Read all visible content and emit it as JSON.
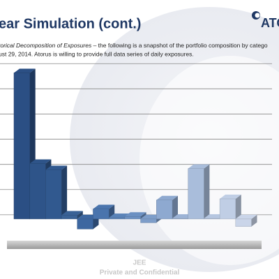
{
  "chart_data": {
    "type": "bar3d",
    "title": "ear Simulation (cont.)",
    "subtitle_italic": "torical Decomposition of Exposures",
    "subtitle_line1": " – the following is a snapshot of the portfolio composition by catego",
    "subtitle_line2": "ust 29, 2014.  Atorus is willing to provide full data series of daily exposures.",
    "categories": [
      null,
      null,
      null,
      null,
      null,
      null,
      null,
      null,
      null,
      null,
      null,
      null,
      null,
      null,
      null
    ],
    "values": [
      5.8,
      2.2,
      1.95,
      0.15,
      -0.4,
      0.4,
      0.05,
      0.1,
      -0.15,
      0.75,
      0.02,
      2.0,
      0.02,
      0.8,
      -0.3
    ],
    "colors": [
      "#2b4f84",
      "#2e5489",
      "#31598f",
      "#3a6296",
      "#3d67a0",
      "#4a74ad",
      "#5a83b8",
      "#6b90c2",
      "#7d9dc9",
      "#8ea9d0",
      "#9cb3d6",
      "#a9bddb",
      "#b5c6e0",
      "#c0cee5",
      "#cad5e9"
    ],
    "ylim": [
      -1,
      6.2
    ],
    "yticks": [
      0,
      1,
      2,
      3,
      4,
      5,
      6
    ],
    "grid": true
  },
  "logo": "ATO",
  "footer": [
    "JEE",
    "Private and Confidential"
  ]
}
